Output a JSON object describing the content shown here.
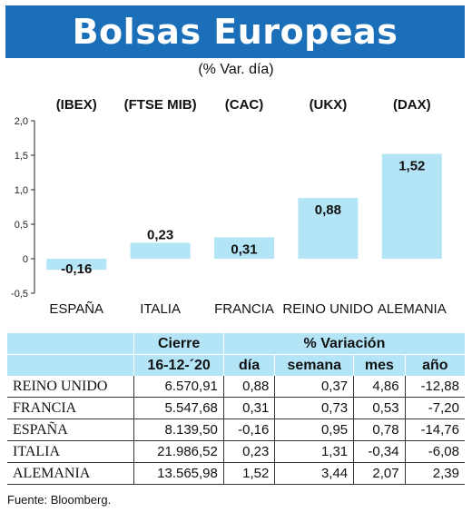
{
  "header": {
    "title": "Bolsas Europeas",
    "subtitle": "(% Var. día)"
  },
  "chart_data": {
    "type": "bar",
    "categories": [
      "ESPAÑA",
      "ITALIA",
      "FRANCIA",
      "REINO UNIDO",
      "ALEMANIA"
    ],
    "indices": [
      "(IBEX)",
      "(FTSE MIB)",
      "(CAC)",
      "(UKX)",
      "(DAX)"
    ],
    "values": [
      -0.16,
      0.23,
      0.31,
      0.88,
      1.52
    ],
    "value_labels": [
      "-0,16",
      "0,23",
      "0,31",
      "0,88",
      "1,52"
    ],
    "ylim": [
      -0.5,
      2.0
    ],
    "yticks": [
      -0.5,
      0,
      0.5,
      1.0,
      1.5,
      2.0
    ],
    "ytick_labels": [
      "-0,5",
      "0",
      "0,5",
      "1,0",
      "1,5",
      "2,0"
    ],
    "bar_color": "#b3e5f7",
    "grid": false
  },
  "table": {
    "group_headers": {
      "cierre": "Cierre",
      "variacion": "% Variación"
    },
    "column_headers": [
      "16-12-´20",
      "día",
      "semana",
      "mes",
      "año"
    ],
    "rows": [
      {
        "name": "REINO UNIDO",
        "cierre": "6.570,91",
        "dia": "0,88",
        "semana": "0,37",
        "mes": "4,86",
        "ano": "-12,88"
      },
      {
        "name": "FRANCIA",
        "cierre": "5.547,68",
        "dia": "0,31",
        "semana": "0,73",
        "mes": "0,53",
        "ano": "-7,20"
      },
      {
        "name": "ESPAÑA",
        "cierre": "8.139,50",
        "dia": "-0,16",
        "semana": "0,95",
        "mes": "0,78",
        "ano": "-14,76"
      },
      {
        "name": "ITALIA",
        "cierre": "21.986,52",
        "dia": "0,23",
        "semana": "1,31",
        "mes": "-0,34",
        "ano": "-6,08"
      },
      {
        "name": "ALEMANIA",
        "cierre": "13.565,98",
        "dia": "1,52",
        "semana": "3,44",
        "mes": "2,07",
        "ano": "2,39"
      }
    ]
  },
  "footer": {
    "source": "Fuente: Bloomberg."
  },
  "colors": {
    "banner": "#1a6fb8",
    "accent": "#b3e5f7"
  }
}
